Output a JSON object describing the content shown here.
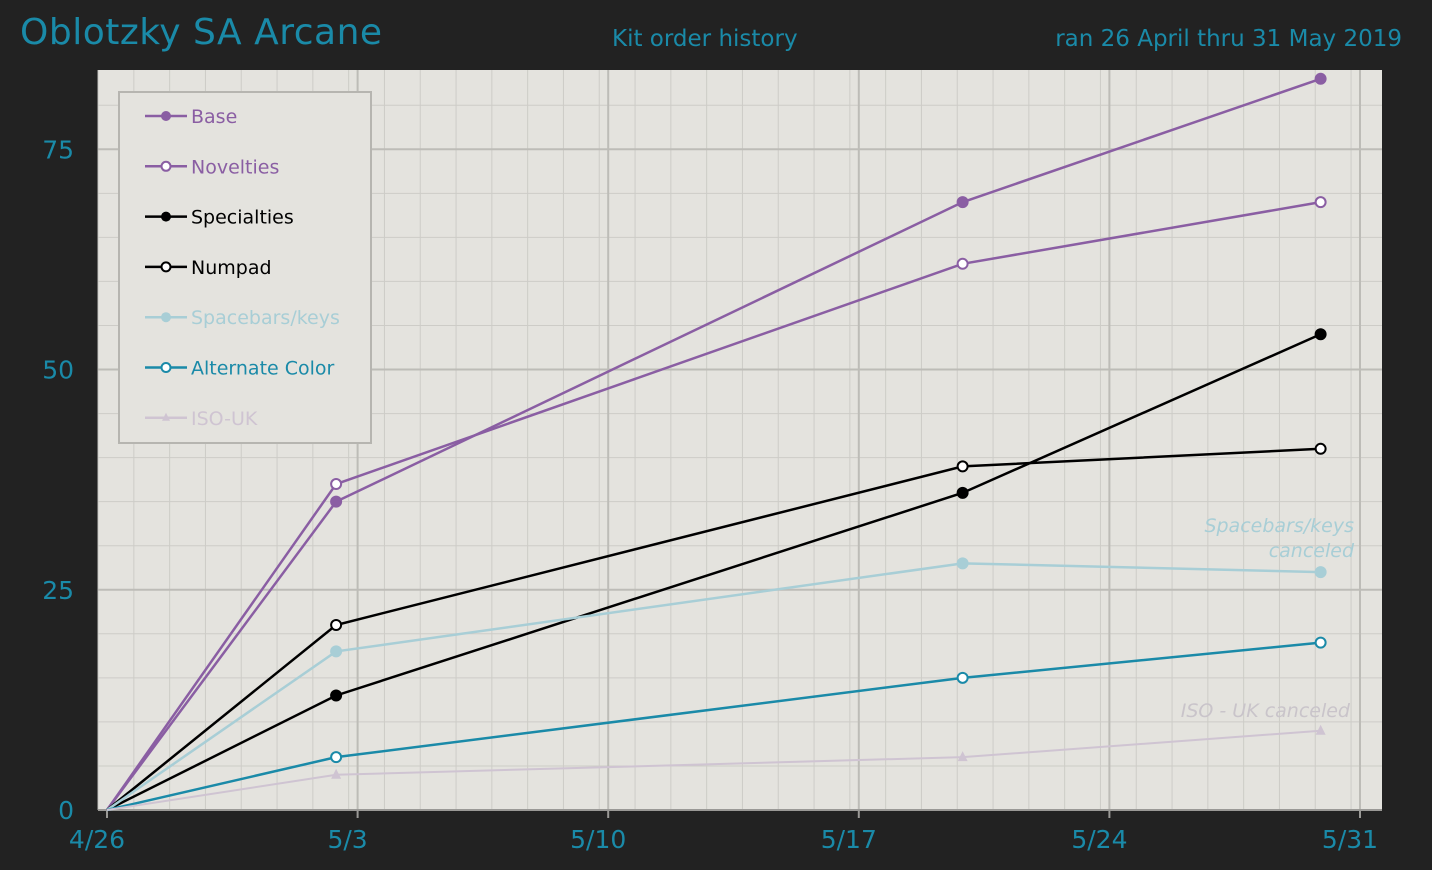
{
  "header": {
    "title": "Oblotzky SA Arcane",
    "subtitle": "Kit order history",
    "date_range": "ran 26 April thru 31 May 2019"
  },
  "colors": {
    "background": "#222222",
    "plot_background": "#e4e3de",
    "accent": "#1a8aa8"
  },
  "chart_data": {
    "type": "line",
    "title": "Kit order history",
    "xlabel": "",
    "ylabel": "",
    "x_unit": "days since 4/26",
    "xlim": [
      0,
      36
    ],
    "ylim": [
      0,
      84
    ],
    "x_ticks": [
      {
        "value": 0,
        "label": "4/26"
      },
      {
        "value": 7,
        "label": "5/3"
      },
      {
        "value": 14,
        "label": "5/10"
      },
      {
        "value": 21,
        "label": "5/17"
      },
      {
        "value": 28,
        "label": "5/24"
      },
      {
        "value": 35,
        "label": "5/31"
      }
    ],
    "y_ticks": [
      0,
      25,
      50,
      75
    ],
    "grid": true,
    "legend_position": "top-left",
    "series": [
      {
        "name": "Base",
        "color": "#8a5ea3",
        "marker": "filled-circle",
        "x": [
          0,
          6.4,
          23.9,
          33.9
        ],
        "y": [
          0,
          35,
          69,
          83
        ]
      },
      {
        "name": "Novelties",
        "color": "#8a5ea3",
        "marker": "open-circle",
        "x": [
          0,
          6.4,
          23.9,
          33.9
        ],
        "y": [
          0,
          37,
          62,
          69
        ]
      },
      {
        "name": "Specialties",
        "color": "#000000",
        "marker": "filled-circle",
        "x": [
          0,
          6.4,
          23.9,
          33.9
        ],
        "y": [
          0,
          13,
          36,
          54
        ]
      },
      {
        "name": "Numpad",
        "color": "#000000",
        "marker": "open-circle",
        "x": [
          0,
          6.4,
          23.9,
          33.9
        ],
        "y": [
          0,
          21,
          39,
          41
        ]
      },
      {
        "name": "Spacebars/keys",
        "color": "#a8ced6",
        "marker": "filled-circle",
        "x": [
          0,
          6.4,
          23.9,
          33.9
        ],
        "y": [
          0,
          18,
          28,
          27
        ]
      },
      {
        "name": "Alternate Color",
        "color": "#1a8aa8",
        "marker": "open-circle",
        "x": [
          0,
          6.4,
          23.9,
          33.9
        ],
        "y": [
          0,
          6,
          15,
          19
        ]
      },
      {
        "name": "ISO-UK",
        "color": "#cfc4d2",
        "marker": "triangle",
        "x": [
          0,
          6.4,
          23.9,
          33.9
        ],
        "y": [
          0,
          4,
          6,
          9
        ]
      }
    ],
    "annotations": [
      {
        "lines": [
          "Spacebars/keys",
          "canceled"
        ],
        "color": "#a8ced6"
      },
      {
        "lines": [
          "ISO - UK canceled"
        ],
        "color": "#c9c4ca"
      }
    ]
  }
}
